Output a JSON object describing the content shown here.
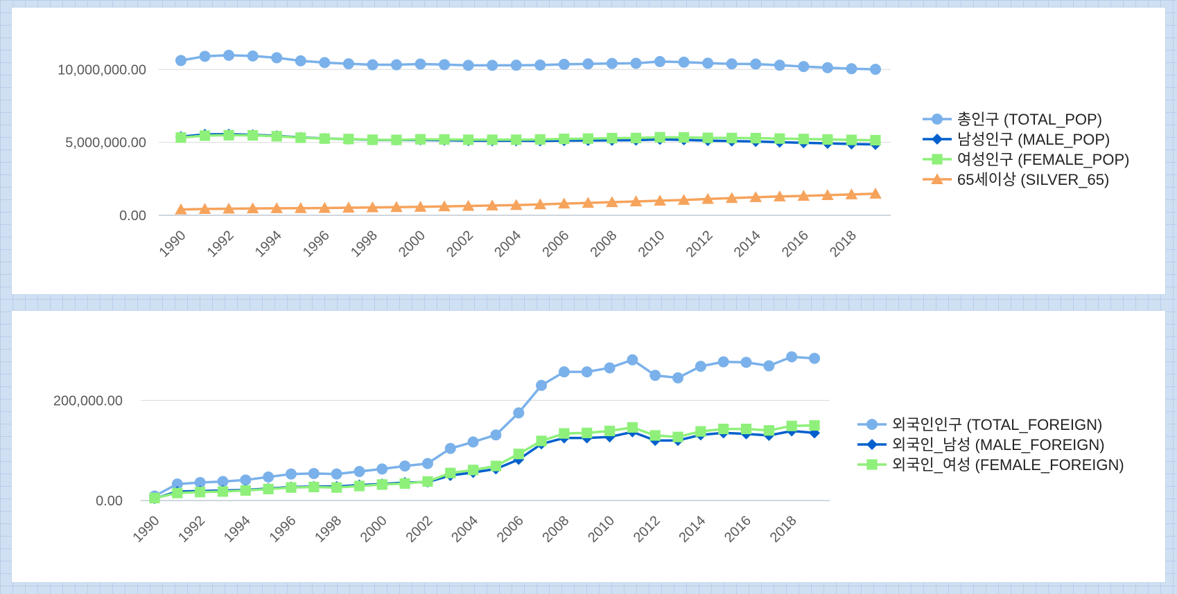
{
  "chart_data": [
    {
      "type": "line",
      "x": [
        1990,
        1991,
        1992,
        1993,
        1994,
        1995,
        1996,
        1997,
        1998,
        1999,
        2000,
        2001,
        2002,
        2003,
        2004,
        2005,
        2006,
        2007,
        2008,
        2009,
        2010,
        2011,
        2012,
        2013,
        2014,
        2015,
        2016,
        2017,
        2018,
        2019
      ],
      "x_tick_labels": [
        "1990",
        "1992",
        "1994",
        "1996",
        "1998",
        "2000",
        "2002",
        "2004",
        "2006",
        "2008",
        "2010",
        "2012",
        "2014",
        "2016",
        "2018"
      ],
      "y_tick_labels": [
        "0.00",
        "5,000,000.00",
        "10,000,000.00"
      ],
      "ylim": [
        0,
        11200000
      ],
      "grid": true,
      "legend_position": "right",
      "series": [
        {
          "name": "총인구 (TOTAL_POP)",
          "color": "#7ab1ea",
          "marker": "circle",
          "values": [
            10610000,
            10900000,
            10970000,
            10920000,
            10800000,
            10590000,
            10470000,
            10390000,
            10320000,
            10320000,
            10370000,
            10330000,
            10280000,
            10280000,
            10290000,
            10300000,
            10350000,
            10380000,
            10410000,
            10420000,
            10540000,
            10500000,
            10430000,
            10380000,
            10370000,
            10290000,
            10200000,
            10120000,
            10050000,
            10010000
          ]
        },
        {
          "name": "남성인구 (MALE_POP)",
          "color": "#0060cc",
          "marker": "diamond",
          "values": [
            5390000,
            5550000,
            5560000,
            5520000,
            5450000,
            5340000,
            5270000,
            5220000,
            5170000,
            5160000,
            5170000,
            5150000,
            5120000,
            5110000,
            5110000,
            5100000,
            5120000,
            5130000,
            5140000,
            5150000,
            5200000,
            5170000,
            5120000,
            5090000,
            5060000,
            5010000,
            4970000,
            4930000,
            4890000,
            4860000
          ]
        },
        {
          "name": "여성인구 (FEMALE_POP)",
          "color": "#8ef07a",
          "marker": "square",
          "values": [
            5330000,
            5460000,
            5490000,
            5480000,
            5420000,
            5320000,
            5260000,
            5230000,
            5180000,
            5170000,
            5210000,
            5200000,
            5180000,
            5180000,
            5180000,
            5200000,
            5240000,
            5260000,
            5290000,
            5300000,
            5350000,
            5340000,
            5310000,
            5300000,
            5290000,
            5260000,
            5230000,
            5200000,
            5170000,
            5150000
          ]
        },
        {
          "name": "65세이상 (SILVER_65)",
          "color": "#f6a35c",
          "marker": "triangle",
          "values": [
            400000,
            430000,
            450000,
            470000,
            480000,
            490000,
            500000,
            520000,
            540000,
            560000,
            580000,
            610000,
            640000,
            670000,
            700000,
            750000,
            800000,
            850000,
            900000,
            950000,
            1000000,
            1050000,
            1120000,
            1180000,
            1240000,
            1290000,
            1330000,
            1380000,
            1430000,
            1480000
          ]
        }
      ]
    },
    {
      "type": "line",
      "x": [
        1990,
        1991,
        1992,
        1993,
        1994,
        1995,
        1996,
        1997,
        1998,
        1999,
        2000,
        2001,
        2002,
        2003,
        2004,
        2005,
        2006,
        2007,
        2008,
        2009,
        2010,
        2011,
        2012,
        2013,
        2014,
        2015,
        2016,
        2017,
        2018,
        2019
      ],
      "x_tick_labels": [
        "1990",
        "1992",
        "1994",
        "1996",
        "1998",
        "2000",
        "2002",
        "2004",
        "2006",
        "2008",
        "2010",
        "2012",
        "2014",
        "2016",
        "2018"
      ],
      "y_tick_labels": [
        "0.00",
        "200,000.00"
      ],
      "ylim": [
        0,
        300000
      ],
      "grid": true,
      "legend_position": "right",
      "series": [
        {
          "name": "외국인인구 (TOTAL_FOREIGN)",
          "color": "#7ab1ea",
          "marker": "circle",
          "values": [
            9000,
            33000,
            36000,
            38000,
            41000,
            47000,
            53000,
            54000,
            53000,
            58000,
            63000,
            69000,
            74000,
            104000,
            117000,
            131000,
            175000,
            230000,
            257000,
            257000,
            265000,
            281000,
            250000,
            245000,
            268000,
            277000,
            276000,
            269000,
            287000,
            284000
          ]
        },
        {
          "name": "외국인_남성 (MALE_FOREIGN)",
          "color": "#0060cc",
          "marker": "diamond",
          "values": [
            4000,
            18000,
            19000,
            20000,
            21000,
            24000,
            27000,
            28000,
            28000,
            31000,
            33000,
            36000,
            37000,
            50000,
            56000,
            63000,
            82000,
            113000,
            125000,
            125000,
            127000,
            137000,
            120000,
            120000,
            131000,
            135000,
            133000,
            130000,
            139000,
            135000
          ]
        },
        {
          "name": "외국인_여성 (FEMALE_FOREIGN)",
          "color": "#8ef07a",
          "marker": "square",
          "values": [
            5000,
            15000,
            17000,
            18000,
            20000,
            23000,
            26000,
            27000,
            26000,
            29000,
            32000,
            34000,
            38000,
            55000,
            61000,
            69000,
            93000,
            119000,
            134000,
            135000,
            139000,
            146000,
            130000,
            127000,
            138000,
            143000,
            143000,
            140000,
            149000,
            150000
          ]
        }
      ]
    }
  ]
}
